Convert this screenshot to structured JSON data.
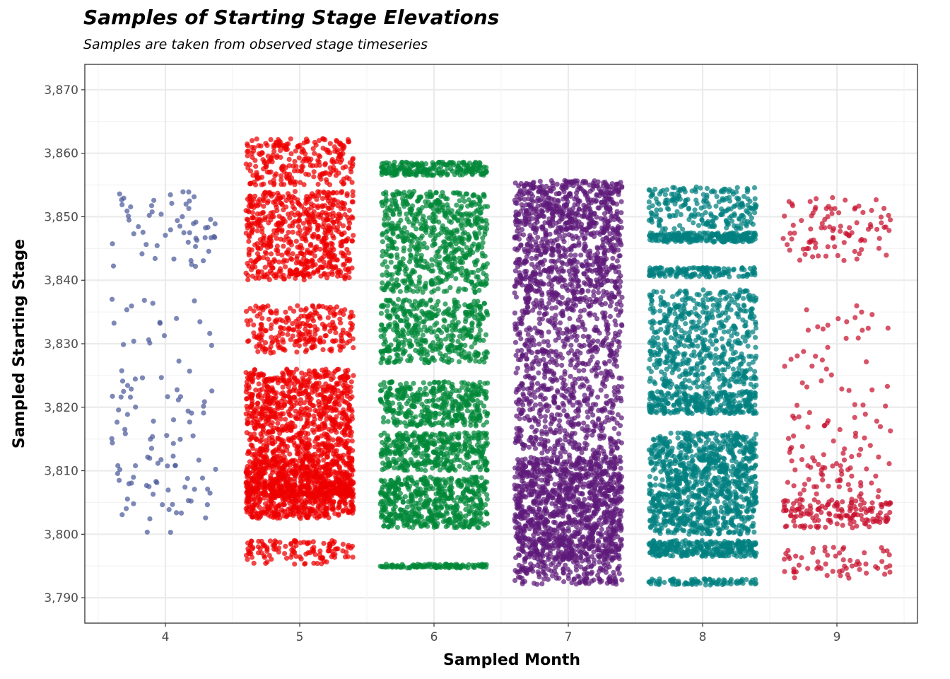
{
  "chart_data": {
    "type": "scatter",
    "style": "jittered-strip",
    "title": "Samples of Starting Stage Elevations",
    "subtitle": "Samples are taken from observed stage timeseries",
    "xlabel": "Sampled Month",
    "ylabel": "Sampled Starting Stage",
    "categories": [
      "4",
      "5",
      "6",
      "7",
      "8",
      "9"
    ],
    "ylim": [
      3786,
      3874
    ],
    "yticks": [
      3790,
      3800,
      3810,
      3820,
      3830,
      3840,
      3850,
      3860,
      3870
    ],
    "ytick_labels": [
      "3,790",
      "3,800",
      "3,810",
      "3,820",
      "3,830",
      "3,840",
      "3,850",
      "3,860",
      "3,870"
    ],
    "grid": true,
    "legend": "none",
    "series": [
      {
        "name": "4",
        "color": "#4B5A9B",
        "approx_points": 160,
        "min": 3800.3,
        "max": 3853.9,
        "bands": [
          [
            3842,
            3854,
            0.35
          ],
          [
            3826,
            3837,
            0.12
          ],
          [
            3800,
            3826,
            0.53
          ]
        ]
      },
      {
        "name": "5",
        "color": "#EE0000",
        "approx_points": 3000,
        "min": 3795.3,
        "max": 3862.3,
        "bands": [
          [
            3795.3,
            3799,
            0.04
          ],
          [
            3802.5,
            3808,
            0.14
          ],
          [
            3806,
            3812,
            0.2
          ],
          [
            3812,
            3826,
            0.26
          ],
          [
            3828.5,
            3836,
            0.08
          ],
          [
            3840,
            3854,
            0.2
          ],
          [
            3855,
            3862.3,
            0.08
          ]
        ]
      },
      {
        "name": "6",
        "color": "#008837",
        "approx_points": 2700,
        "min": 3794.7,
        "max": 3858.6,
        "bands": [
          [
            3794.7,
            3795.3,
            0.04
          ],
          [
            3801,
            3809,
            0.2
          ],
          [
            3810,
            3816,
            0.14
          ],
          [
            3817,
            3824,
            0.14
          ],
          [
            3827,
            3837,
            0.16
          ],
          [
            3838,
            3854,
            0.24
          ],
          [
            3856.5,
            3858.6,
            0.08
          ]
        ]
      },
      {
        "name": "7",
        "color": "#5E1B7A",
        "approx_points": 3000,
        "min": 3792.1,
        "max": 3855.7,
        "bands": [
          [
            3792.1,
            3796,
            0.05
          ],
          [
            3796,
            3812,
            0.38
          ],
          [
            3812,
            3828,
            0.16
          ],
          [
            3828,
            3836,
            0.08
          ],
          [
            3836,
            3848,
            0.18
          ],
          [
            3848,
            3855.7,
            0.15
          ]
        ]
      },
      {
        "name": "8",
        "color": "#008080",
        "approx_points": 2800,
        "min": 3792.0,
        "max": 3854.7,
        "bands": [
          [
            3792,
            3793,
            0.03
          ],
          [
            3796.5,
            3799,
            0.1
          ],
          [
            3800,
            3816,
            0.36
          ],
          [
            3819,
            3822.5,
            0.1
          ],
          [
            3823,
            3838.5,
            0.2
          ],
          [
            3840.5,
            3842,
            0.05
          ],
          [
            3846,
            3847.5,
            0.08
          ],
          [
            3848,
            3854.7,
            0.08
          ]
        ]
      },
      {
        "name": "9",
        "color": "#C8102E",
        "approx_points": 420,
        "min": 3793.1,
        "max": 3853.0,
        "bands": [
          [
            3793.1,
            3798,
            0.14
          ],
          [
            3801,
            3806,
            0.36
          ],
          [
            3806,
            3814,
            0.14
          ],
          [
            3814,
            3836,
            0.14
          ],
          [
            3843,
            3853,
            0.22
          ]
        ]
      }
    ]
  }
}
